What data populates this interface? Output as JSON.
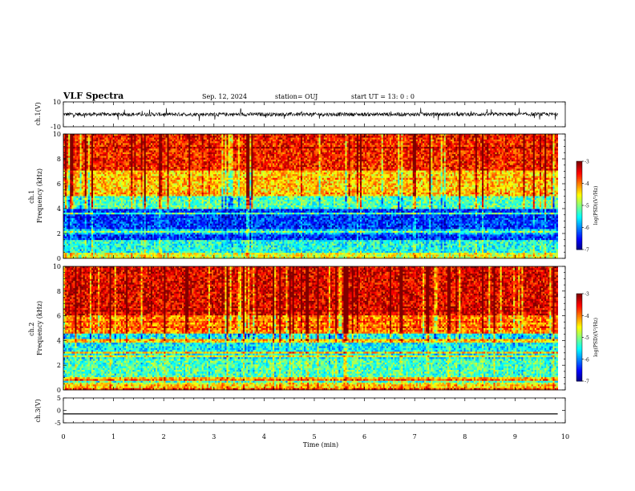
{
  "header": {
    "title": "VLF Spectra",
    "date": "Sep. 12, 2024",
    "station": "station= OUJ",
    "start": "start  UT =   13: 0  : 0"
  },
  "chart_data": [
    {
      "type": "line",
      "name": "ch1-waveform",
      "ylabel": "ch.1(V)",
      "ylim": [
        -10,
        10
      ],
      "yticks": [
        {
          "v": 10,
          "label": "10"
        },
        {
          "v": -10,
          "label": "-10"
        }
      ],
      "xlim": [
        0,
        10
      ],
      "trace": {
        "x_end": 9.85,
        "mean": 0,
        "amplitude": 2.5
      }
    },
    {
      "type": "heatmap",
      "name": "ch1-spectrogram",
      "ylabel": "ch.1\nFrequency  (kHz)",
      "xlim": [
        0,
        10
      ],
      "ylim": [
        0,
        10
      ],
      "yticks": [
        0,
        2,
        4,
        6,
        8,
        10
      ],
      "data_x_end": 9.85,
      "bands": [
        {
          "from": 0,
          "to": 0.5,
          "level": -4.6
        },
        {
          "from": 0.5,
          "to": 1.5,
          "level": -5.4
        },
        {
          "from": 1.5,
          "to": 4,
          "level": -6.3
        },
        {
          "from": 4,
          "to": 5,
          "level": -5.2
        },
        {
          "from": 5,
          "to": 7,
          "level": -4.3
        },
        {
          "from": 7,
          "to": 10,
          "level": -3.6
        }
      ],
      "colorbar": {
        "label": "log(PSD)(V²/Hz)",
        "range": [
          -7,
          -3
        ],
        "ticks": [
          -3,
          -4,
          -5,
          -6,
          -7
        ]
      }
    },
    {
      "type": "heatmap",
      "name": "ch2-spectrogram",
      "ylabel": "ch.2\nFrequency  (kHz)",
      "xlim": [
        0,
        10
      ],
      "ylim": [
        0,
        10
      ],
      "yticks": [
        0,
        2,
        4,
        6,
        8,
        10
      ],
      "data_x_end": 9.85,
      "bands": [
        {
          "from": 0,
          "to": 0.5,
          "level": -4.3
        },
        {
          "from": 0.5,
          "to": 2.5,
          "level": -5.2
        },
        {
          "from": 2.5,
          "to": 4.5,
          "level": -5.5
        },
        {
          "from": 4.5,
          "to": 6,
          "level": -4.0
        },
        {
          "from": 6,
          "to": 10,
          "level": -3.4
        }
      ],
      "colorbar": {
        "label": "log(PSD)(V²/Hz)",
        "range": [
          -7,
          -3
        ],
        "ticks": [
          -3,
          -4,
          -5,
          -6,
          -7
        ]
      }
    },
    {
      "type": "line",
      "name": "ch3-waveform",
      "ylabel": "ch.3(V)",
      "ylim": [
        -5,
        5
      ],
      "yticks": [
        {
          "v": 5,
          "label": "5"
        },
        {
          "v": 0,
          "label": "0"
        },
        {
          "v": -5,
          "label": "-5"
        }
      ],
      "xlim": [
        0,
        10
      ],
      "trace": {
        "x_end": 9.85,
        "value": -1.4
      }
    }
  ],
  "xaxis": {
    "label": "Time  (min)",
    "ticks": [
      0,
      1,
      2,
      3,
      4,
      5,
      6,
      7,
      8,
      9,
      10
    ]
  }
}
